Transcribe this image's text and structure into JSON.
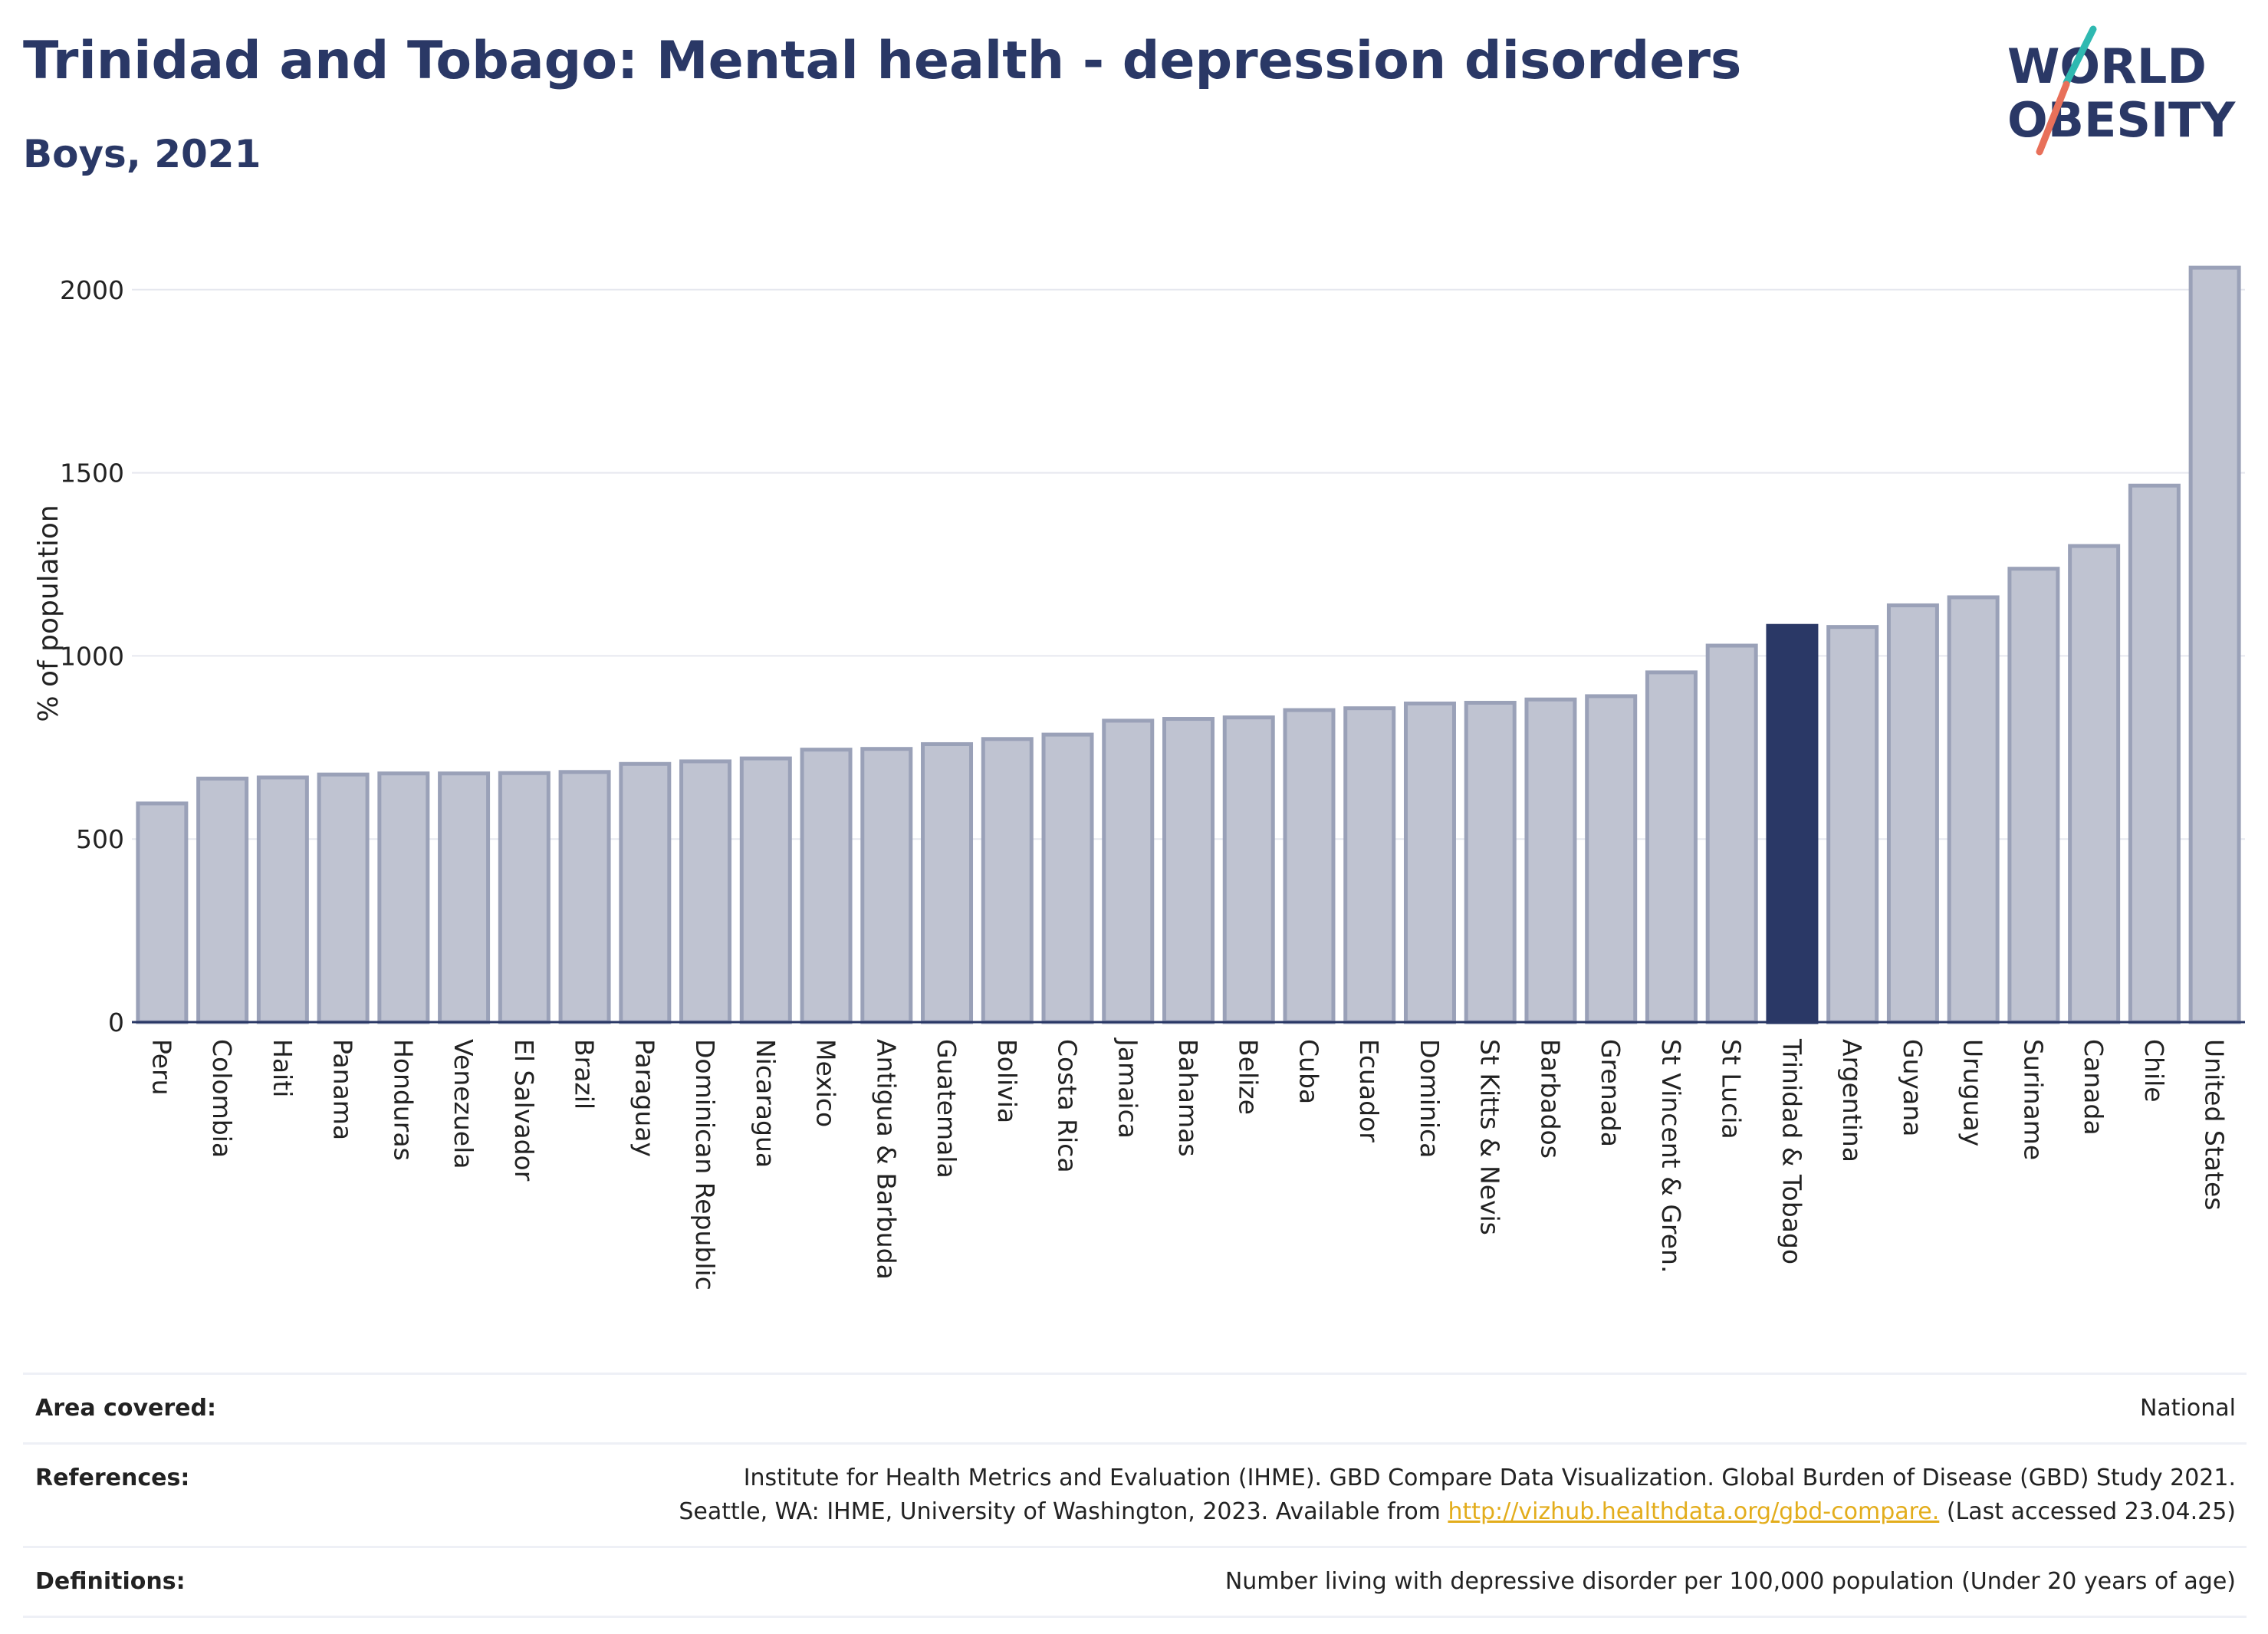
{
  "header": {
    "title": "Trinidad and Tobago: Mental health - depression disorders",
    "subtitle": "Boys, 2021"
  },
  "logo": {
    "line1": "WORLD",
    "line2": "OBESITY",
    "text_color": "#2a3866",
    "slash_colors": [
      "#2fb9b1",
      "#e8705a"
    ]
  },
  "colors": {
    "bar": "#bfc3d1",
    "bar_outline": "#9aa1b8",
    "highlight": "#2a3866",
    "grid": "#e6e8ef"
  },
  "chart_data": {
    "type": "bar",
    "title": "Trinidad and Tobago: Mental health - depression disorders",
    "subtitle": "Boys, 2021",
    "xlabel": "",
    "ylabel": "% of population",
    "ylim": [
      0,
      2100
    ],
    "yticks": [
      0,
      500,
      1000,
      1500,
      2000
    ],
    "grid": true,
    "highlight": "Trinidad & Tobago",
    "categories": [
      "Peru",
      "Colombia",
      "Haiti",
      "Panama",
      "Honduras",
      "Venezuela",
      "El Salvador",
      "Brazil",
      "Paraguay",
      "Dominican Republic",
      "Nicaragua",
      "Mexico",
      "Antigua & Barbuda",
      "Guatemala",
      "Bolivia",
      "Costa Rica",
      "Jamaica",
      "Bahamas",
      "Belize",
      "Cuba",
      "Ecuador",
      "Dominica",
      "St Kitts & Nevis",
      "Barbados",
      "Grenada",
      "St Vincent & Gren.",
      "St Lucia",
      "Trinidad & Tobago",
      "Argentina",
      "Guyana",
      "Uruguay",
      "Suriname",
      "Canada",
      "Chile",
      "United States"
    ],
    "values": [
      597,
      665,
      668,
      676,
      679,
      679,
      680,
      683,
      705,
      712,
      720,
      744,
      746,
      759,
      773,
      785,
      823,
      828,
      832,
      852,
      857,
      870,
      872,
      881,
      890,
      955,
      1028,
      1082,
      1079,
      1138,
      1160,
      1238,
      1300,
      1465,
      2060
    ]
  },
  "footer": {
    "rows": [
      {
        "label": "Area covered:",
        "lines": [
          "National"
        ]
      },
      {
        "label": "References:",
        "lines": [
          "Institute for Health Metrics and Evaluation (IHME). GBD Compare Data Visualization. Global Burden of Disease (GBD) Study 2021."
        ],
        "line2_before": "Seattle, WA: IHME, University of Washington, 2023. Available from ",
        "line2_link": "http://vizhub.healthdata.org/gbd-compare.",
        "line2_after": " (Last accessed 23.04.25)"
      },
      {
        "label": "Definitions:",
        "lines": [
          "Number living with depressive disorder per 100,000 population (Under 20 years of age)"
        ]
      }
    ]
  }
}
